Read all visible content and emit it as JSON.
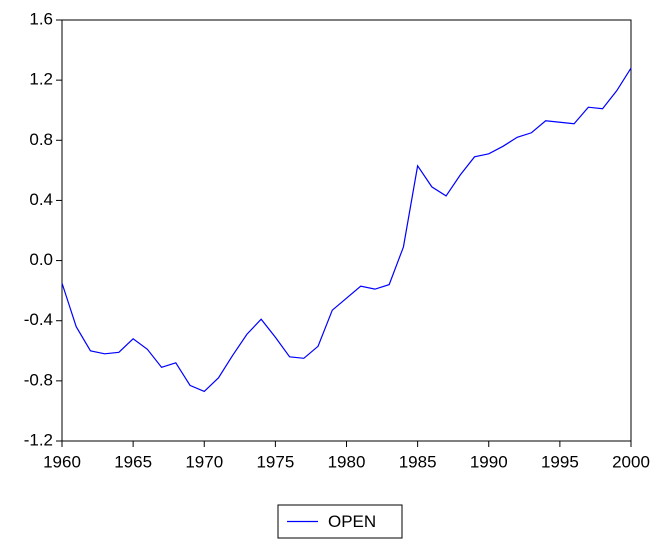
{
  "chart_data": {
    "type": "line",
    "x": [
      1960,
      1961,
      1962,
      1963,
      1964,
      1965,
      1966,
      1967,
      1968,
      1969,
      1970,
      1971,
      1972,
      1973,
      1974,
      1975,
      1976,
      1977,
      1978,
      1979,
      1980,
      1981,
      1982,
      1983,
      1984,
      1985,
      1986,
      1987,
      1988,
      1989,
      1990,
      1991,
      1992,
      1993,
      1994,
      1995,
      1996,
      1997,
      1998,
      1999,
      2000
    ],
    "series": [
      {
        "name": "OPEN",
        "color": "#0000ff",
        "values": [
          -0.15,
          -0.44,
          -0.6,
          -0.62,
          -0.61,
          -0.52,
          -0.59,
          -0.71,
          -0.68,
          -0.83,
          -0.87,
          -0.78,
          -0.63,
          -0.49,
          -0.39,
          -0.51,
          -0.64,
          -0.65,
          -0.57,
          -0.33,
          -0.25,
          -0.17,
          -0.19,
          -0.16,
          0.09,
          0.63,
          0.49,
          0.43,
          0.57,
          0.69,
          0.71,
          0.76,
          0.82,
          0.85,
          0.93,
          0.92,
          0.91,
          1.02,
          1.01,
          1.13,
          1.28
        ]
      }
    ],
    "xlim": [
      1960,
      2000
    ],
    "xticks": [
      1960,
      1965,
      1970,
      1975,
      1980,
      1985,
      1990,
      1995,
      2000
    ],
    "ylim": [
      -1.2,
      1.6
    ],
    "yticks": [
      -1.2,
      -0.8,
      -0.4,
      {
        "value": 0,
        "label": "0.0"
      },
      0.4,
      0.8,
      1.2,
      1.6
    ],
    "legend": "bottom"
  }
}
